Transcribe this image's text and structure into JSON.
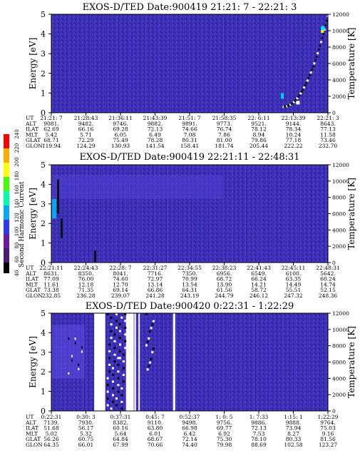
{
  "colors": {
    "background_field": "#3b2fb2",
    "colorbar": [
      "#000000",
      "#4a1a7a",
      "#6a1aa8",
      "#2a3aff",
      "#00aaff",
      "#00ffaa",
      "#44ff00",
      "#ffff00",
      "#ffaa00",
      "#ff0000"
    ]
  },
  "colorbar_label": "Second Harmonic Current",
  "colorbar_ticks": [
    "40",
    "60",
    "80",
    "100",
    "120",
    "140",
    "160",
    "180",
    "200",
    "220",
    "240"
  ],
  "panels": [
    {
      "title": "EXOS-D/TED   Date:900419  21:21: 7 - 22:21: 3",
      "ylabel_left": "Energy [eV]",
      "ylabel_right": "Temperature [K]",
      "energy_ticks": [
        "0",
        "1",
        "2",
        "3",
        "4",
        "5"
      ],
      "temp_ticks": [
        "0",
        "2000",
        "4000",
        "6000",
        "8000",
        "10000",
        "12000"
      ],
      "row_labels": [
        "UT",
        "ALT",
        "ILAT",
        "MLT",
        "GLAT",
        "GLON"
      ],
      "columns": [
        [
          "21:21: 7",
          "9081.",
          "62.69",
          "5.42",
          "68.71",
          "119.94"
        ],
        [
          "21:28:43",
          "9482.",
          "66.16",
          "5.71",
          "72.29",
          "124.29"
        ],
        [
          "21:36:11",
          "9746.",
          "69.28",
          "6.05",
          "75.49",
          "130.93"
        ],
        [
          "21:43:39",
          "9882.",
          "72.13",
          "6.49",
          "78.28",
          "141.54"
        ],
        [
          "21:51: 7",
          "9891.",
          "74.66",
          "7.08",
          "80.31",
          "158.41"
        ],
        [
          "21:58:35",
          "9773.",
          "76.74",
          "7.86",
          "81.00",
          "181.74"
        ],
        [
          "22: 6:11",
          "9521.",
          "78.12",
          "8.94",
          "79.86",
          "205.44"
        ],
        [
          "22:13:39",
          "9144.",
          "78.34",
          "10.24",
          "77.18",
          "222.22"
        ],
        [
          "22:21: 3",
          "8643.",
          "77.13",
          "11.58",
          "73.46",
          "232.70"
        ]
      ]
    },
    {
      "title": "EXOS-D/TED   Date:900419  22:21:11 - 22:48:31",
      "ylabel_left": "Energy [eV]",
      "ylabel_right": "Temperature [K]",
      "energy_ticks": [
        "0",
        "1",
        "2",
        "3",
        "4",
        "5"
      ],
      "temp_ticks": [
        "0",
        "2000",
        "4000",
        "6000",
        "8000",
        "10000",
        "12000"
      ],
      "row_labels": [
        "UT",
        "ALT",
        "ILAT",
        "MLT",
        "GLAT",
        "GLON"
      ],
      "columns": [
        [
          "22:21:11",
          "8631.",
          "77.09",
          "11.61",
          "73.38",
          "232.85"
        ],
        [
          "22:24:43",
          "8350.",
          "76.00",
          "12.18",
          "71.35",
          "236.28"
        ],
        [
          "22:28: 7",
          "8041.",
          "74.60",
          "12.70",
          "69.14",
          "239.07"
        ],
        [
          "22:31:27",
          "7716.",
          "72.97",
          "13.14",
          "66.86",
          "241.28"
        ],
        [
          "22:34:55",
          "7350.",
          "70.99",
          "13.54",
          "64.31",
          "243.19"
        ],
        [
          "22:38:23",
          "6956.",
          "68.72",
          "13.90",
          "61.56",
          "244.79"
        ],
        [
          "22:41:43",
          "6549.",
          "66.24",
          "14.21",
          "58.72",
          "246.12"
        ],
        [
          "22:45:11",
          "6100.",
          "63.35",
          "14.49",
          "55.51",
          "247.32"
        ],
        [
          "22:48:31",
          "5642.",
          "60.24",
          "14.74",
          "52.15",
          "248.36"
        ]
      ]
    },
    {
      "title": "EXOS-D/TED   Date:900420   0:22:31 - 1:22:29",
      "ylabel_left": "Energy [eV]",
      "ylabel_right": "Temperature [K]",
      "energy_ticks": [
        "0",
        "1",
        "2",
        "3",
        "4",
        "5"
      ],
      "temp_ticks": [
        "0",
        "2000",
        "4000",
        "6000",
        "8000",
        "10000",
        "12000"
      ],
      "row_labels": [
        "UT",
        "ALT",
        "ILAT",
        "MLT",
        "GLAT",
        "GLON"
      ],
      "columns": [
        [
          "0:22:31",
          "7139.",
          "51.68",
          "5.02",
          "56.26",
          "64.35"
        ],
        [
          "0:30: 3",
          "7930.",
          "56.17",
          "5.32",
          "60.75",
          "66.01"
        ],
        [
          "0:37:31",
          "8382.",
          "60.16",
          "5.64",
          "64.84",
          "67.99"
        ],
        [
          "0:45: 7",
          "9110.",
          "63.80",
          "6.01",
          "68.67",
          "70.66"
        ],
        [
          "0:52:37",
          "9498.",
          "66.98",
          "6.42",
          "72.14",
          "74.40"
        ],
        [
          "1: 0: 5",
          "9756.",
          "69.77",
          "6.92",
          "75.30",
          "79.98"
        ],
        [
          "1: 7:33",
          "9886.",
          "72.13",
          "7.53",
          "78.10",
          "88.69"
        ],
        [
          "1:15: 1",
          "9888.",
          "73.94",
          "8.27",
          "80.33",
          "102.58"
        ],
        [
          "1:22:29",
          "9764.",
          "75.03",
          "9.16",
          "81.56",
          "123.27"
        ]
      ]
    }
  ],
  "chart_data": [
    {
      "type": "heatmap",
      "title": "EXOS-D/TED   Date:900419  21:21: 7 - 22:21: 3",
      "xlabel": "UT",
      "ylabel": "Energy [eV]",
      "ylabel_right": "Temperature [K]",
      "ylim": [
        0,
        5
      ],
      "ylim_right": [
        0,
        12000
      ],
      "x_ticks": [
        "21:21: 7",
        "21:28:43",
        "21:36:11",
        "21:43:39",
        "21:51: 7",
        "21:58:35",
        "22: 6:11",
        "22:13:39",
        "22:21: 3"
      ],
      "colorbar_label": "Second Harmonic Current",
      "colorbar_range": [
        40,
        240
      ],
      "background_level": 90,
      "features": [
        {
          "name": "temperature rise near end",
          "x": [
            "22: 6:11",
            "22:21: 3"
          ],
          "energy": [
            0.3,
            5
          ]
        }
      ]
    },
    {
      "type": "heatmap",
      "title": "EXOS-D/TED   Date:900419  22:21:11 - 22:48:31",
      "xlabel": "UT",
      "ylabel": "Energy [eV]",
      "ylabel_right": "Temperature [K]",
      "ylim": [
        0,
        5
      ],
      "ylim_right": [
        0,
        12000
      ],
      "x_ticks": [
        "22:21:11",
        "22:24:43",
        "22:28: 7",
        "22:31:27",
        "22:34:55",
        "22:38:23",
        "22:41:43",
        "22:45:11",
        "22:48:31"
      ],
      "colorbar_label": "Second Harmonic Current",
      "colorbar_range": [
        40,
        240
      ],
      "background_level": 90,
      "features": [
        {
          "name": "high energy signal at start",
          "x": [
            "22:21:11",
            "22:24:43"
          ],
          "energy": [
            2.5,
            4.5
          ]
        }
      ]
    },
    {
      "type": "heatmap",
      "title": "EXOS-D/TED   Date:900420   0:22:31 - 1:22:29",
      "xlabel": "UT",
      "ylabel": "Energy [eV]",
      "ylabel_right": "Temperature [K]",
      "ylim": [
        0,
        5
      ],
      "ylim_right": [
        0,
        12000
      ],
      "x_ticks": [
        "0:22:31",
        "0:30: 3",
        "0:37:31",
        "0:45: 7",
        "0:52:37",
        "1: 0: 5",
        "1: 7:33",
        "1:15: 1",
        "1:22:29"
      ],
      "colorbar_label": "Second Harmonic Current",
      "colorbar_range": [
        40,
        240
      ],
      "background_level": 90,
      "features": [
        {
          "name": "data gaps",
          "x": [
            "0:30: 3",
            "0:45: 7"
          ],
          "energy": [
            0,
            5
          ]
        }
      ]
    }
  ]
}
